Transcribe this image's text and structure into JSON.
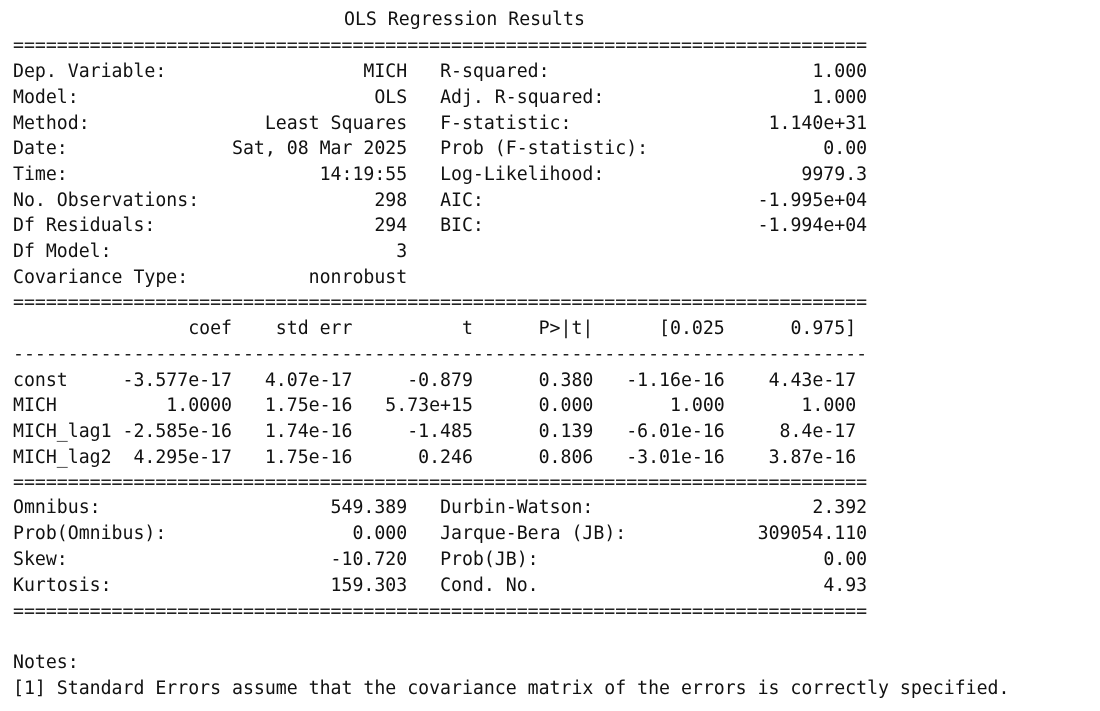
{
  "title": "OLS Regression Results",
  "rule_double": "==============================================================================",
  "rule_single": "------------------------------------------------------------------------------",
  "header_rows": [
    {
      "left_label": "Dep. Variable:",
      "left_value": "MICH",
      "right_label": "R-squared:",
      "right_value": "1.000"
    },
    {
      "left_label": "Model:",
      "left_value": "OLS",
      "right_label": "Adj. R-squared:",
      "right_value": "1.000"
    },
    {
      "left_label": "Method:",
      "left_value": "Least Squares",
      "right_label": "F-statistic:",
      "right_value": "1.140e+31"
    },
    {
      "left_label": "Date:",
      "left_value": "Sat, 08 Mar 2025",
      "right_label": "Prob (F-statistic):",
      "right_value": "0.00"
    },
    {
      "left_label": "Time:",
      "left_value": "14:19:55",
      "right_label": "Log-Likelihood:",
      "right_value": "9979.3"
    },
    {
      "left_label": "No. Observations:",
      "left_value": "298",
      "right_label": "AIC:",
      "right_value": "-1.995e+04"
    },
    {
      "left_label": "Df Residuals:",
      "left_value": "294",
      "right_label": "BIC:",
      "right_value": "-1.994e+04"
    },
    {
      "left_label": "Df Model:",
      "left_value": "3",
      "right_label": "",
      "right_value": ""
    },
    {
      "left_label": "Covariance Type:",
      "left_value": "nonrobust",
      "right_label": "",
      "right_value": ""
    }
  ],
  "coef_header": [
    "coef",
    "std err",
    "t",
    "P>|t|",
    "[0.025",
    "0.975]"
  ],
  "coef_rows": [
    {
      "name": "const",
      "values": [
        "-3.577e-17",
        "4.07e-17",
        "-0.879",
        "0.380",
        "-1.16e-16",
        "4.43e-17"
      ]
    },
    {
      "name": "MICH",
      "values": [
        "1.0000",
        "1.75e-16",
        "5.73e+15",
        "0.000",
        "1.000",
        "1.000"
      ]
    },
    {
      "name": "MICH_lag1",
      "values": [
        "-2.585e-16",
        "1.74e-16",
        "-1.485",
        "0.139",
        "-6.01e-16",
        "8.4e-17"
      ]
    },
    {
      "name": "MICH_lag2",
      "values": [
        "4.295e-17",
        "1.75e-16",
        "0.246",
        "0.806",
        "-3.01e-16",
        "3.87e-16"
      ]
    }
  ],
  "diag_rows": [
    {
      "left_label": "Omnibus:",
      "left_value": "549.389",
      "right_label": "Durbin-Watson:",
      "right_value": "2.392"
    },
    {
      "left_label": "Prob(Omnibus):",
      "left_value": "0.000",
      "right_label": "Jarque-Bera (JB):",
      "right_value": "309054.110"
    },
    {
      "left_label": "Skew:",
      "left_value": "-10.720",
      "right_label": "Prob(JB):",
      "right_value": "0.00"
    },
    {
      "left_label": "Kurtosis:",
      "left_value": "159.303",
      "right_label": "Cond. No.",
      "right_value": "4.93"
    }
  ],
  "notes": {
    "heading": "Notes:",
    "items": [
      "[1] Standard Errors assume that the covariance matrix of the errors is correctly specified."
    ]
  }
}
